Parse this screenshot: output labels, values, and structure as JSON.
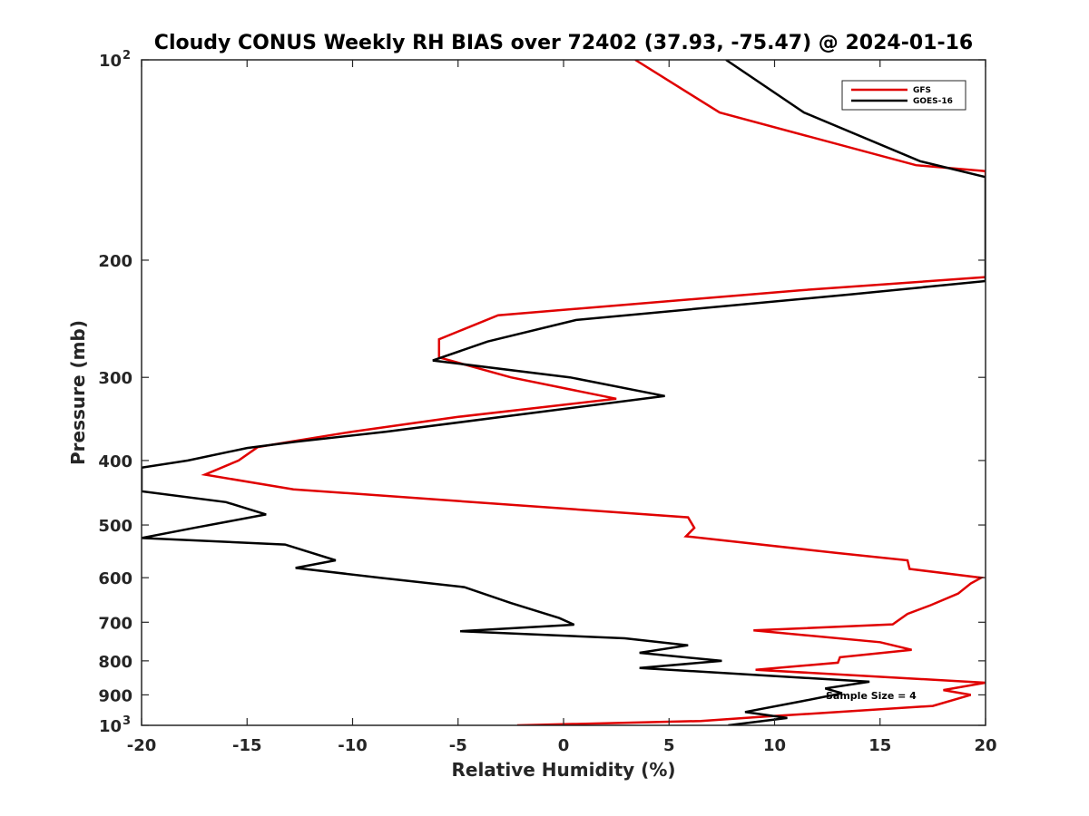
{
  "chart_data": {
    "type": "line",
    "title": "Cloudy CONUS Weekly RH BIAS over 72402 (37.93, -75.47) @ 2024-01-16",
    "xlabel": "Relative Humidity (%)",
    "ylabel": "Pressure (mb)",
    "xlim": [
      -20,
      20
    ],
    "ylim": [
      100,
      1000
    ],
    "y_scale": "log",
    "y_reversed": false,
    "x_ticks": [
      "-20",
      "-15",
      "-10",
      "-5",
      "0",
      "5",
      "10",
      "15",
      "20"
    ],
    "y_ticks": [
      {
        "value": 100,
        "label": "10",
        "sup": "2"
      },
      {
        "value": 200,
        "label": "200",
        "sup": ""
      },
      {
        "value": 300,
        "label": "300",
        "sup": ""
      },
      {
        "value": 400,
        "label": "400",
        "sup": ""
      },
      {
        "value": 500,
        "label": "500",
        "sup": ""
      },
      {
        "value": 600,
        "label": "600",
        "sup": ""
      },
      {
        "value": 700,
        "label": "700",
        "sup": ""
      },
      {
        "value": 800,
        "label": "800",
        "sup": ""
      },
      {
        "value": 900,
        "label": "900",
        "sup": ""
      },
      {
        "value": 1000,
        "label": "10",
        "sup": "3"
      }
    ],
    "grid": false,
    "legend_position": "top-right",
    "annotation": "Sample Size = 4",
    "series": [
      {
        "name": "GFS",
        "color": "#e00000",
        "points": [
          [
            3.4,
            100
          ],
          [
            7.4,
            120
          ],
          [
            16.7,
            144
          ],
          [
            20,
            147
          ],
          [
            20.1,
            212
          ],
          [
            11.2,
            222
          ],
          [
            -3.1,
            242
          ],
          [
            -5.9,
            263
          ],
          [
            -5.9,
            280
          ],
          [
            -2.5,
            300
          ],
          [
            2.5,
            323
          ],
          [
            -5,
            344
          ],
          [
            -10,
            362
          ],
          [
            -13,
            375
          ],
          [
            -14.5,
            382
          ],
          [
            -15.4,
            400
          ],
          [
            -17,
            420
          ],
          [
            -12.8,
            442
          ],
          [
            5.9,
            487
          ],
          [
            6.2,
            505
          ],
          [
            5.8,
            520
          ],
          [
            13,
            551
          ],
          [
            16.3,
            565
          ],
          [
            16.4,
            582
          ],
          [
            19.8,
            600
          ],
          [
            19.3,
            612
          ],
          [
            18.7,
            634
          ],
          [
            17.4,
            660
          ],
          [
            16.3,
            680
          ],
          [
            15.6,
            705
          ],
          [
            9,
            720
          ],
          [
            15,
            750
          ],
          [
            16.5,
            770
          ],
          [
            13.1,
            790
          ],
          [
            13,
            805
          ],
          [
            9.1,
            825
          ],
          [
            20,
            863
          ],
          [
            18,
            885
          ],
          [
            19.3,
            900
          ],
          [
            17.5,
            935
          ],
          [
            9.6,
            970
          ],
          [
            6.5,
            985
          ],
          [
            -2.2,
            1000
          ]
        ]
      },
      {
        "name": "GOES-16",
        "color": "#000000",
        "points": [
          [
            7.7,
            100
          ],
          [
            11.4,
            120
          ],
          [
            16.9,
            142
          ],
          [
            20,
            150
          ],
          [
            20,
            215
          ],
          [
            13.7,
            225
          ],
          [
            0.6,
            246
          ],
          [
            -3.6,
            265
          ],
          [
            -6.2,
            283
          ],
          [
            0.3,
            300
          ],
          [
            4.8,
            320
          ],
          [
            -8.4,
            362
          ],
          [
            -12.7,
            375
          ],
          [
            -15,
            383
          ],
          [
            -17.8,
            400
          ],
          [
            -20,
            410
          ],
          [
            -20,
            445
          ],
          [
            -16,
            462
          ],
          [
            -14.1,
            482
          ],
          [
            -17.5,
            505
          ],
          [
            -20,
            523
          ],
          [
            -13.2,
            535
          ],
          [
            -10.8,
            565
          ],
          [
            -12.7,
            580
          ],
          [
            -8.7,
            600
          ],
          [
            -4.7,
            620
          ],
          [
            -2.5,
            655
          ],
          [
            -0.2,
            690
          ],
          [
            0.5,
            706
          ],
          [
            -4.9,
            722
          ],
          [
            2.9,
            740
          ],
          [
            5.9,
            758
          ],
          [
            3.6,
            778
          ],
          [
            7.5,
            800
          ],
          [
            3.6,
            820
          ],
          [
            14.5,
            860
          ],
          [
            12.4,
            880
          ],
          [
            13.2,
            895
          ],
          [
            11.3,
            920
          ],
          [
            8.6,
            955
          ],
          [
            10.6,
            975
          ],
          [
            7.8,
            1000
          ]
        ]
      }
    ]
  }
}
